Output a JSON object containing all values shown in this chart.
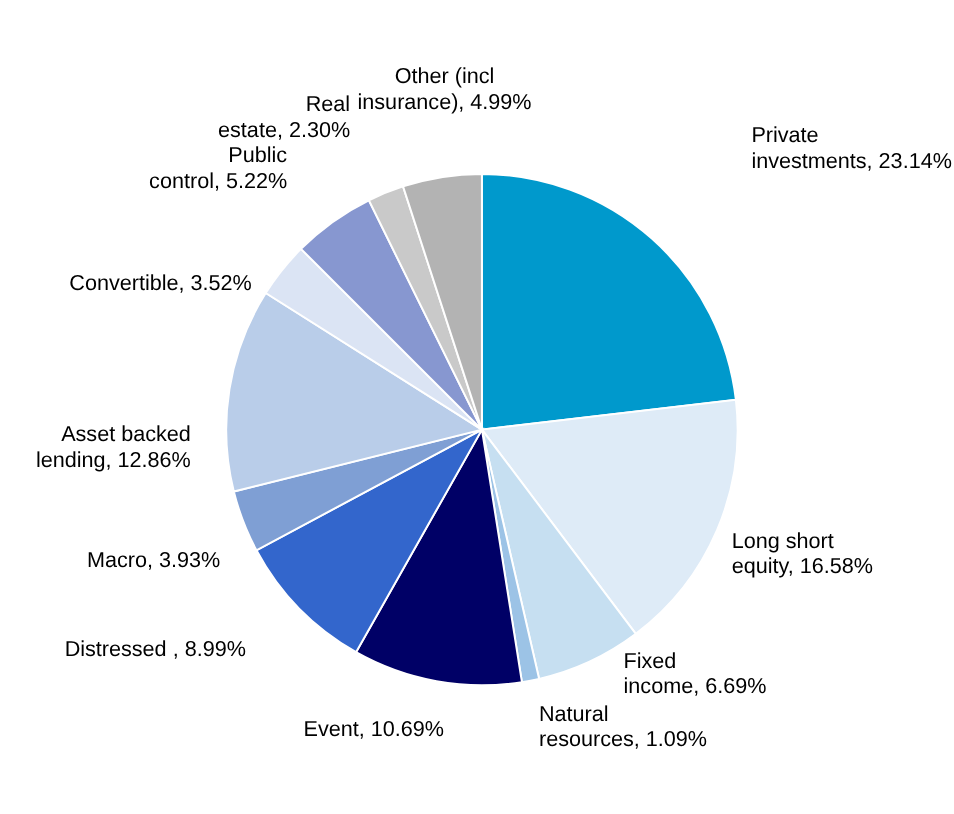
{
  "chart_data": {
    "type": "pie",
    "categories": [
      "Private investments",
      "Long short equity",
      "Fixed income",
      "Natural resources",
      "Event",
      "Distressed ",
      "Macro",
      "Asset backed lending",
      "Convertible",
      "Public control",
      "Real estate",
      "Other (incl insurance)"
    ],
    "values": [
      23.14,
      16.58,
      6.69,
      1.09,
      10.69,
      8.99,
      3.93,
      12.86,
      3.52,
      5.22,
      2.3,
      4.99
    ],
    "value_labels": [
      "23.14%",
      "16.58%",
      "6.69%",
      "1.09%",
      "10.69%",
      "8.99%",
      "3.93%",
      "12.86%",
      "3.52%",
      "5.22%",
      "2.30%",
      "4.99%"
    ],
    "colors": [
      "#0099cc",
      "#deebf7",
      "#c6dff1",
      "#9cc3e6",
      "#000066",
      "#3366cc",
      "#7f9fd4",
      "#b9cde9",
      "#dbe4f4",
      "#8797d0",
      "#c9c9c9",
      "#b3b3b3"
    ],
    "legend": false
  }
}
